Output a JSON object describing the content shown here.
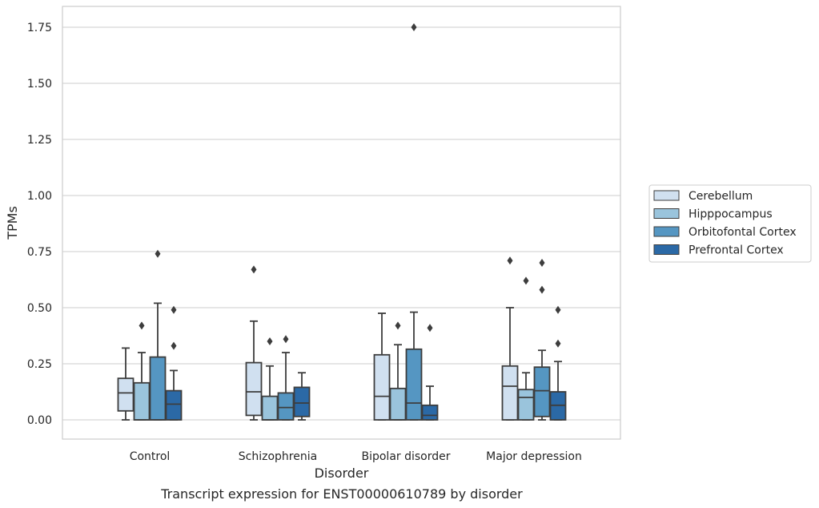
{
  "chart_data": {
    "type": "boxplot",
    "caption": "Transcript expression for ENST00000610789 by disorder",
    "xlabel": "Disorder",
    "ylabel": "TPMs",
    "ylim": [
      -0.085,
      1.84
    ],
    "yticks": [
      "0.00",
      "0.25",
      "0.50",
      "0.75",
      "1.00",
      "1.25",
      "1.50",
      "1.75"
    ],
    "grid": true,
    "legend_position": "right",
    "categories": [
      "Control",
      "Schizophrenia",
      "Bipolar disorder",
      "Major depression"
    ],
    "series": [
      {
        "name": "Cerebellum",
        "color": "#d0e0f0",
        "boxes": [
          {
            "whislo": 0.0,
            "q1": 0.04,
            "med": 0.12,
            "q3": 0.185,
            "whishi": 0.32,
            "fliers": []
          },
          {
            "whislo": 0.0,
            "q1": 0.02,
            "med": 0.125,
            "q3": 0.255,
            "whishi": 0.44,
            "fliers": [
              0.67
            ]
          },
          {
            "whislo": 0.0,
            "q1": 0.0,
            "med": 0.105,
            "q3": 0.29,
            "whishi": 0.475,
            "fliers": []
          },
          {
            "whislo": 0.0,
            "q1": 0.0,
            "med": 0.15,
            "q3": 0.24,
            "whishi": 0.5,
            "fliers": [
              0.71
            ]
          }
        ]
      },
      {
        "name": "Hipppocampus",
        "color": "#9ac4dc",
        "boxes": [
          {
            "whislo": 0.0,
            "q1": 0.0,
            "med": 0.0,
            "q3": 0.165,
            "whishi": 0.3,
            "fliers": [
              0.42
            ]
          },
          {
            "whislo": 0.0,
            "q1": 0.0,
            "med": 0.0,
            "q3": 0.105,
            "whishi": 0.24,
            "fliers": [
              0.35
            ]
          },
          {
            "whislo": 0.0,
            "q1": 0.0,
            "med": 0.0,
            "q3": 0.14,
            "whishi": 0.335,
            "fliers": [
              0.42
            ]
          },
          {
            "whislo": 0.0,
            "q1": 0.0,
            "med": 0.1,
            "q3": 0.135,
            "whishi": 0.21,
            "fliers": [
              0.62
            ]
          }
        ]
      },
      {
        "name": "Orbitofontal Cortex",
        "color": "#5596c2",
        "boxes": [
          {
            "whislo": 0.0,
            "q1": 0.0,
            "med": 0.0,
            "q3": 0.28,
            "whishi": 0.52,
            "fliers": [
              0.74
            ]
          },
          {
            "whislo": 0.0,
            "q1": 0.0,
            "med": 0.055,
            "q3": 0.12,
            "whishi": 0.3,
            "fliers": [
              0.36
            ]
          },
          {
            "whislo": 0.0,
            "q1": 0.0,
            "med": 0.075,
            "q3": 0.315,
            "whishi": 0.48,
            "fliers": [
              1.75
            ]
          },
          {
            "whislo": 0.0,
            "q1": 0.015,
            "med": 0.13,
            "q3": 0.235,
            "whishi": 0.31,
            "fliers": [
              0.58,
              0.7
            ]
          }
        ]
      },
      {
        "name": "Prefrontal Cortex",
        "color": "#2b69a6",
        "boxes": [
          {
            "whislo": 0.0,
            "q1": 0.0,
            "med": 0.07,
            "q3": 0.13,
            "whishi": 0.22,
            "fliers": [
              0.33,
              0.49
            ]
          },
          {
            "whislo": 0.0,
            "q1": 0.015,
            "med": 0.075,
            "q3": 0.145,
            "whishi": 0.21,
            "fliers": []
          },
          {
            "whislo": 0.0,
            "q1": 0.0,
            "med": 0.02,
            "q3": 0.065,
            "whishi": 0.15,
            "fliers": [
              0.41
            ]
          },
          {
            "whislo": 0.0,
            "q1": 0.0,
            "med": 0.065,
            "q3": 0.125,
            "whishi": 0.26,
            "fliers": [
              0.34,
              0.49
            ]
          }
        ]
      }
    ]
  }
}
